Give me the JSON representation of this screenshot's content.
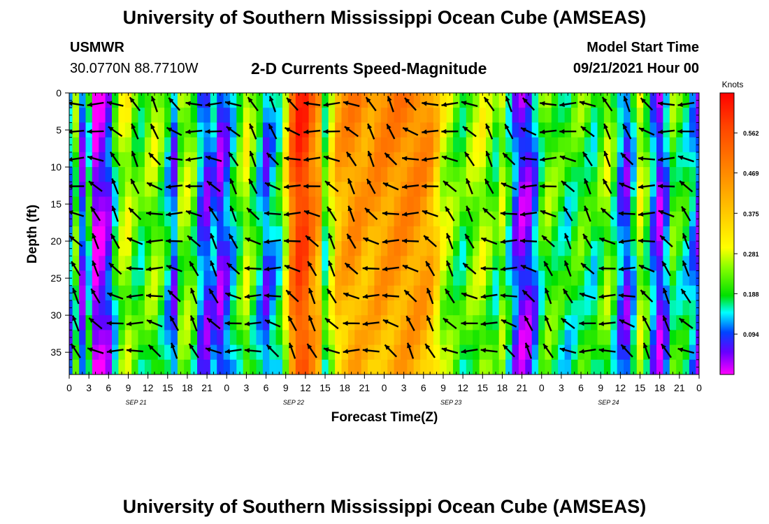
{
  "header": {
    "title": "University of Southern Mississippi Ocean Cube (AMSEAS)",
    "footer_title": "University of Southern Mississippi Ocean Cube (AMSEAS)",
    "station": "USMWR",
    "location": "30.0770N  88.7710W",
    "plot_title": "2-D Currents Speed-Magnitude",
    "model_start_label": "Model Start Time",
    "model_start_value": "09/21/2021 Hour 00"
  },
  "chart_data": {
    "type": "heatmap",
    "title": "2-D Currents Speed-Magnitude",
    "xlabel": "Forecast Time(Z)",
    "ylabel": "Depth (ft)",
    "x_tick_labels": [
      "0",
      "3",
      "6",
      "9",
      "12",
      "15",
      "18",
      "21",
      "0",
      "3",
      "6",
      "9",
      "12",
      "15",
      "18",
      "21",
      "0",
      "3",
      "6",
      "9",
      "12",
      "15",
      "18",
      "21",
      "0",
      "3",
      "6",
      "9",
      "12",
      "15",
      "18",
      "21",
      "0"
    ],
    "date_labels": [
      "SEP 21",
      "SEP 22",
      "SEP 23",
      "SEP 24"
    ],
    "x_range_hours": [
      0,
      96
    ],
    "y_ticks": [
      0,
      5,
      10,
      15,
      20,
      25,
      30,
      35
    ],
    "y_range_ft": [
      0,
      38
    ],
    "colorbar": {
      "unit": "Knots",
      "tick_labels": [
        "0.562",
        "0.469",
        "0.375",
        "0.281",
        "0.188",
        "0.094"
      ],
      "ticks": [
        0.562,
        0.469,
        0.375,
        0.281,
        0.188,
        0.094
      ],
      "range": [
        0.0,
        0.655
      ]
    },
    "speed_profile_knots": [
      [
        0,
        0.12
      ],
      [
        1,
        0.22
      ],
      [
        2,
        0.08
      ],
      [
        3,
        0.18
      ],
      [
        4,
        0.02
      ],
      [
        5,
        0.04
      ],
      [
        6,
        0.08
      ],
      [
        7,
        0.18
      ],
      [
        8,
        0.26
      ],
      [
        9,
        0.28
      ],
      [
        10,
        0.22
      ],
      [
        11,
        0.2
      ],
      [
        12,
        0.24
      ],
      [
        13,
        0.26
      ],
      [
        14,
        0.22
      ],
      [
        15,
        0.16
      ],
      [
        16,
        0.1
      ],
      [
        17,
        0.24
      ],
      [
        18,
        0.26
      ],
      [
        19,
        0.22
      ],
      [
        20,
        0.12
      ],
      [
        21,
        0.08
      ],
      [
        22,
        0.12
      ],
      [
        23,
        0.06
      ],
      [
        24,
        0.1
      ],
      [
        25,
        0.16
      ],
      [
        26,
        0.22
      ],
      [
        27,
        0.28
      ],
      [
        28,
        0.22
      ],
      [
        29,
        0.16
      ],
      [
        30,
        0.1
      ],
      [
        31,
        0.14
      ],
      [
        32,
        0.18
      ],
      [
        33,
        0.3
      ],
      [
        34,
        0.5
      ],
      [
        35,
        0.6
      ],
      [
        36,
        0.58
      ],
      [
        37,
        0.48
      ],
      [
        38,
        0.42
      ],
      [
        39,
        0.2
      ],
      [
        40,
        0.3
      ],
      [
        41,
        0.4
      ],
      [
        42,
        0.42
      ],
      [
        43,
        0.44
      ],
      [
        44,
        0.44
      ],
      [
        45,
        0.42
      ],
      [
        46,
        0.42
      ],
      [
        47,
        0.44
      ],
      [
        48,
        0.44
      ],
      [
        49,
        0.44
      ],
      [
        50,
        0.45
      ],
      [
        51,
        0.45
      ],
      [
        52,
        0.45
      ],
      [
        53,
        0.45
      ],
      [
        54,
        0.44
      ],
      [
        55,
        0.42
      ],
      [
        56,
        0.36
      ],
      [
        57,
        0.28
      ],
      [
        58,
        0.26
      ],
      [
        59,
        0.22
      ],
      [
        60,
        0.2
      ],
      [
        61,
        0.24
      ],
      [
        62,
        0.26
      ],
      [
        63,
        0.28
      ],
      [
        64,
        0.24
      ],
      [
        65,
        0.2
      ],
      [
        66,
        0.26
      ],
      [
        67,
        0.18
      ],
      [
        68,
        0.1
      ],
      [
        69,
        0.05
      ],
      [
        70,
        0.06
      ],
      [
        71,
        0.12
      ],
      [
        72,
        0.2
      ],
      [
        73,
        0.24
      ],
      [
        74,
        0.22
      ],
      [
        75,
        0.2
      ],
      [
        76,
        0.18
      ],
      [
        77,
        0.2
      ],
      [
        78,
        0.22
      ],
      [
        79,
        0.2
      ],
      [
        80,
        0.18
      ],
      [
        81,
        0.22
      ],
      [
        82,
        0.26
      ],
      [
        83,
        0.2
      ],
      [
        84,
        0.12
      ],
      [
        85,
        0.08
      ],
      [
        86,
        0.16
      ],
      [
        87,
        0.28
      ],
      [
        88,
        0.22
      ],
      [
        89,
        0.12
      ],
      [
        90,
        0.05
      ],
      [
        91,
        0.12
      ],
      [
        92,
        0.22
      ],
      [
        93,
        0.2
      ],
      [
        94,
        0.18
      ],
      [
        95,
        0.14
      ],
      [
        96,
        0.08
      ]
    ]
  }
}
